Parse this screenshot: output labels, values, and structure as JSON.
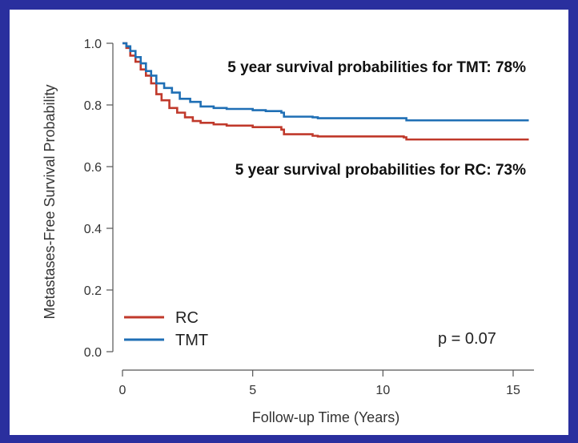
{
  "chart_data": {
    "type": "line",
    "title": "",
    "xlabel": "Follow-up Time (Years)",
    "ylabel": "Metastases-Free Survival Probability",
    "xlim": [
      0,
      16
    ],
    "ylim": [
      0,
      1.05
    ],
    "x_ticks": [
      0,
      5,
      10,
      15
    ],
    "y_ticks": [
      0.0,
      0.2,
      0.4,
      0.6,
      0.8,
      1.0
    ],
    "x_tick_labels": [
      "0",
      "5",
      "10",
      "15"
    ],
    "y_tick_labels": [
      "0.0",
      "0.2",
      "0.4",
      "0.6",
      "0.8",
      "1.0"
    ],
    "grid": false,
    "legend_position": "bottom-left",
    "series": [
      {
        "name": "RC",
        "color": "#c0392b",
        "x": [
          0,
          0.15,
          0.3,
          0.5,
          0.7,
          0.9,
          1.1,
          1.3,
          1.5,
          1.8,
          2.1,
          2.4,
          2.7,
          3.0,
          3.5,
          4.0,
          5.0,
          6.1,
          6.2,
          7.3,
          7.5,
          10.8,
          10.9,
          15.6
        ],
        "values": [
          1.0,
          0.985,
          0.96,
          0.94,
          0.915,
          0.895,
          0.87,
          0.835,
          0.815,
          0.79,
          0.775,
          0.76,
          0.748,
          0.742,
          0.737,
          0.733,
          0.728,
          0.72,
          0.705,
          0.7,
          0.698,
          0.695,
          0.688,
          0.688
        ]
      },
      {
        "name": "TMT",
        "color": "#1f6fb5",
        "x": [
          0,
          0.15,
          0.3,
          0.5,
          0.7,
          0.9,
          1.1,
          1.3,
          1.6,
          1.9,
          2.2,
          2.6,
          3.0,
          3.5,
          4.0,
          5.0,
          5.5,
          6.1,
          6.2,
          7.3,
          7.5,
          10.8,
          10.9,
          15.6
        ],
        "values": [
          1.0,
          0.99,
          0.975,
          0.955,
          0.935,
          0.91,
          0.895,
          0.87,
          0.855,
          0.84,
          0.82,
          0.81,
          0.795,
          0.79,
          0.787,
          0.783,
          0.78,
          0.775,
          0.762,
          0.76,
          0.757,
          0.757,
          0.75,
          0.75
        ]
      }
    ],
    "annotations": [
      "5 year survival probabilities for TMT: 78%",
      "5 year survival probabilities for RC: 73%",
      "p = 0.07"
    ]
  }
}
